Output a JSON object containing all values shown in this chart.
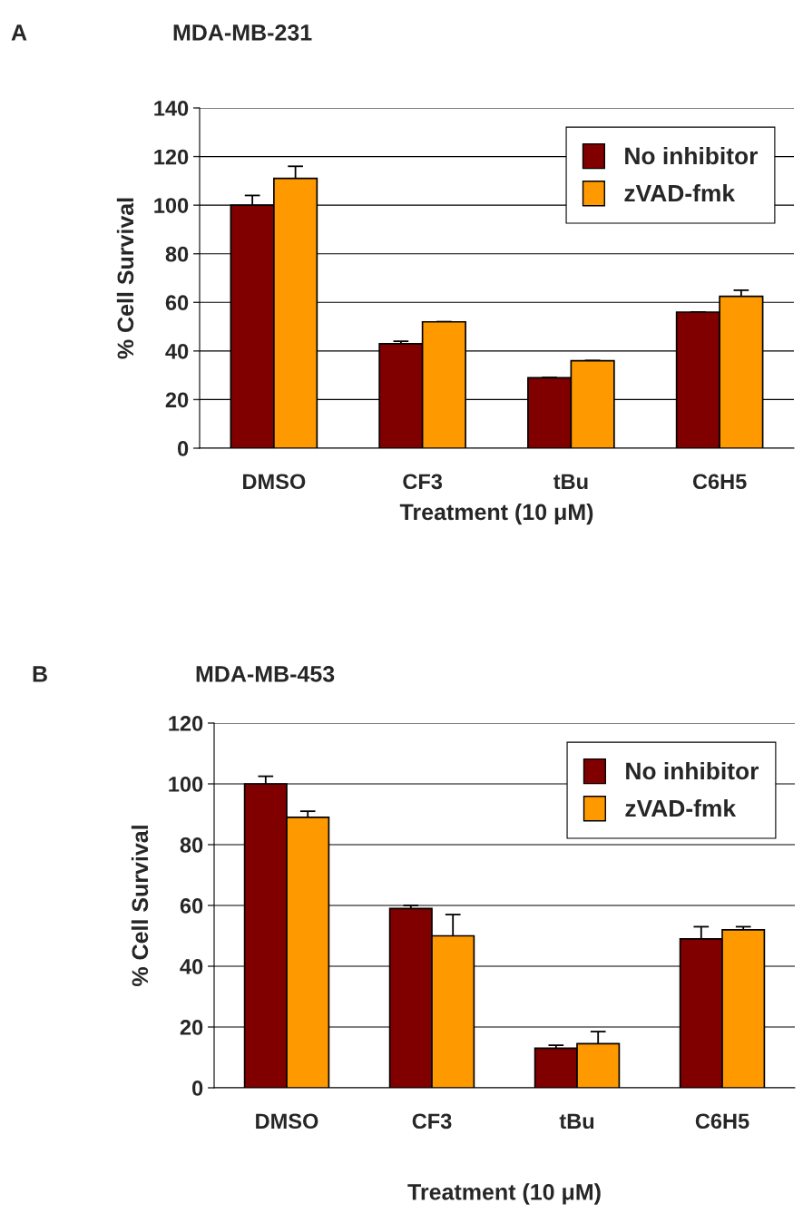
{
  "chart_data": [
    {
      "type": "bar",
      "title": "MDA-MB-231",
      "annotations": [
        "A"
      ],
      "xlabel": "Treatment (10 μM)",
      "ylabel": "% Cell Survival",
      "categories": [
        "DMSO",
        "CF3",
        "tBu",
        "C6H5"
      ],
      "series": [
        {
          "name": "No inhibitor",
          "color": "#800000",
          "values": [
            100,
            43,
            29,
            56
          ],
          "errors": [
            4,
            1,
            0,
            0
          ]
        },
        {
          "name": "zVAD-fmk",
          "color": "#ff9900",
          "values": [
            111,
            52,
            36,
            62.5
          ],
          "errors": [
            5,
            0,
            0,
            2.5
          ]
        }
      ],
      "ylim": [
        0,
        140
      ],
      "yticks": [
        0,
        20,
        40,
        60,
        80,
        100,
        120,
        140
      ],
      "grid": "y",
      "legend": "top right"
    },
    {
      "type": "bar",
      "title": "MDA-MB-453",
      "annotations": [
        "B"
      ],
      "xlabel": "Treatment (10 μM)",
      "ylabel": "% Cell Survival",
      "categories": [
        "DMSO",
        "CF3",
        "tBu",
        "C6H5"
      ],
      "series": [
        {
          "name": "No inhibitor",
          "color": "#800000",
          "values": [
            100,
            59,
            13,
            49
          ],
          "errors": [
            2.5,
            1,
            1,
            4
          ]
        },
        {
          "name": "zVAD-fmk",
          "color": "#ff9900",
          "values": [
            89,
            50,
            14.5,
            52
          ],
          "errors": [
            2,
            7,
            4,
            1
          ]
        }
      ],
      "ylim": [
        0,
        120
      ],
      "yticks": [
        0,
        20,
        40,
        60,
        80,
        100,
        120
      ],
      "grid": "y",
      "legend": "top right"
    }
  ]
}
